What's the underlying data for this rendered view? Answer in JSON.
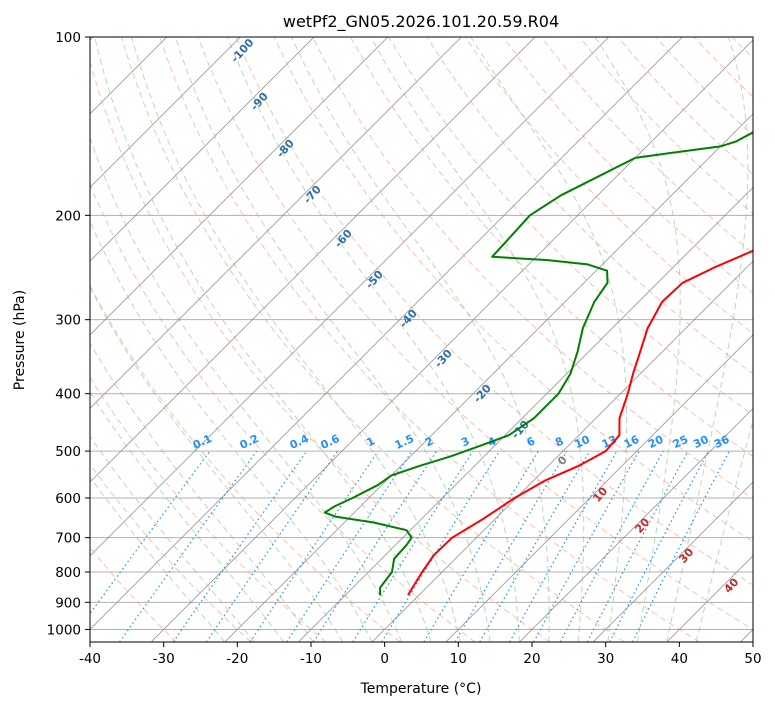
{
  "chart_data": {
    "type": "line",
    "subtype": "skew-t log-p diagram",
    "title": "wetPf2_GN05.2026.101.20.59.R04",
    "xlabel": "Temperature (°C)",
    "ylabel": "Pressure (hPa)",
    "xlim": [
      -40,
      50
    ],
    "ylim": [
      1050,
      100
    ],
    "y_scale": "log",
    "x_ticks": [
      -40,
      -30,
      -20,
      -10,
      0,
      10,
      20,
      30,
      40,
      50
    ],
    "y_ticks": [
      100,
      200,
      300,
      400,
      500,
      600,
      700,
      800,
      900,
      1000
    ],
    "grid": true,
    "series": [
      {
        "role": "temperature",
        "color": "#ff0000",
        "points": [
          {
            "p": 875,
            "t": -1.5
          },
          {
            "p": 850,
            "t": -1.9
          },
          {
            "p": 800,
            "t": -2.7
          },
          {
            "p": 750,
            "t": -3.4
          },
          {
            "p": 700,
            "t": -3.3
          },
          {
            "p": 650,
            "t": -1.6
          },
          {
            "p": 600,
            "t": -0.2
          },
          {
            "p": 560,
            "t": 1.6
          },
          {
            "p": 530,
            "t": 4.1
          },
          {
            "p": 500,
            "t": 5.8
          },
          {
            "p": 470,
            "t": 5.5
          },
          {
            "p": 440,
            "t": 3.2
          },
          {
            "p": 400,
            "t": 1.0
          },
          {
            "p": 370,
            "t": -1.0
          },
          {
            "p": 340,
            "t": -3.0
          },
          {
            "p": 310,
            "t": -5.2
          },
          {
            "p": 280,
            "t": -6.8
          },
          {
            "p": 260,
            "t": -6.6
          },
          {
            "p": 245,
            "t": -4.4
          },
          {
            "p": 230,
            "t": -1.5
          },
          {
            "p": 220,
            "t": -0.6
          },
          {
            "p": 200,
            "t": 3.5
          },
          {
            "p": 180,
            "t": 6.5
          },
          {
            "p": 165,
            "t": 7.8
          },
          {
            "p": 150,
            "t": 10.8
          },
          {
            "p": 135,
            "t": 14.0
          },
          {
            "p": 120,
            "t": 19.0
          },
          {
            "p": 110,
            "t": 23.3
          },
          {
            "p": 100,
            "t": 25.0
          }
        ]
      },
      {
        "role": "dewpoint",
        "color": "#008000",
        "points": [
          {
            "p": 875,
            "t": -5.3
          },
          {
            "p": 850,
            "t": -6.3
          },
          {
            "p": 800,
            "t": -6.8
          },
          {
            "p": 760,
            "t": -8.3
          },
          {
            "p": 720,
            "t": -8.5
          },
          {
            "p": 700,
            "t": -8.8
          },
          {
            "p": 680,
            "t": -10.5
          },
          {
            "p": 660,
            "t": -16
          },
          {
            "p": 645,
            "t": -22
          },
          {
            "p": 635,
            "t": -24.0
          },
          {
            "p": 620,
            "t": -23.5
          },
          {
            "p": 600,
            "t": -22.2
          },
          {
            "p": 570,
            "t": -20.5
          },
          {
            "p": 550,
            "t": -20.0
          },
          {
            "p": 530,
            "t": -17.5
          },
          {
            "p": 510,
            "t": -14.5
          },
          {
            "p": 490,
            "t": -12.0
          },
          {
            "p": 470,
            "t": -9.5
          },
          {
            "p": 440,
            "t": -8.4
          },
          {
            "p": 400,
            "t": -8.4
          },
          {
            "p": 370,
            "t": -9.5
          },
          {
            "p": 340,
            "t": -11.5
          },
          {
            "p": 310,
            "t": -14.0
          },
          {
            "p": 280,
            "t": -16.0
          },
          {
            "p": 260,
            "t": -16.8
          },
          {
            "p": 248,
            "t": -18.5
          },
          {
            "p": 242,
            "t": -22.0
          },
          {
            "p": 238,
            "t": -28.0
          },
          {
            "p": 235,
            "t": -36.0
          },
          {
            "p": 220,
            "t": -36.2
          },
          {
            "p": 200,
            "t": -36.5
          },
          {
            "p": 185,
            "t": -35.0
          },
          {
            "p": 160,
            "t": -30.0
          },
          {
            "p": 157,
            "t": -26.0
          },
          {
            "p": 153,
            "t": -20.0
          },
          {
            "p": 150,
            "t": -18.5
          },
          {
            "p": 140,
            "t": -16.5
          },
          {
            "p": 130,
            "t": -15.3
          },
          {
            "p": 120,
            "t": -14.8
          },
          {
            "p": 100,
            "t": -9.5
          }
        ]
      }
    ],
    "dry_adiabat_labels": [
      "-100",
      "-90",
      "-80",
      "-70",
      "-60",
      "-50",
      "-40",
      "-30",
      "-20",
      "-10",
      "0",
      "10",
      "20",
      "30",
      "40"
    ],
    "mixing_ratio_labels": [
      "0.1",
      "0.2",
      "0.4",
      "0.6",
      "1",
      "1.5",
      "2",
      "3",
      "4",
      "6",
      "8",
      "10",
      "13",
      "16",
      "20",
      "25",
      "30",
      "36"
    ],
    "colors": {
      "isotherm": "#7f7f7f",
      "isobar": "#b0b0b0",
      "dry_adiabat": "#ff8c69",
      "moist_adiabat": "#8fbc8f",
      "mixing_ratio": "#1e90ff",
      "label_blue": "#2e6fa8",
      "label_red": "#c62828"
    }
  }
}
